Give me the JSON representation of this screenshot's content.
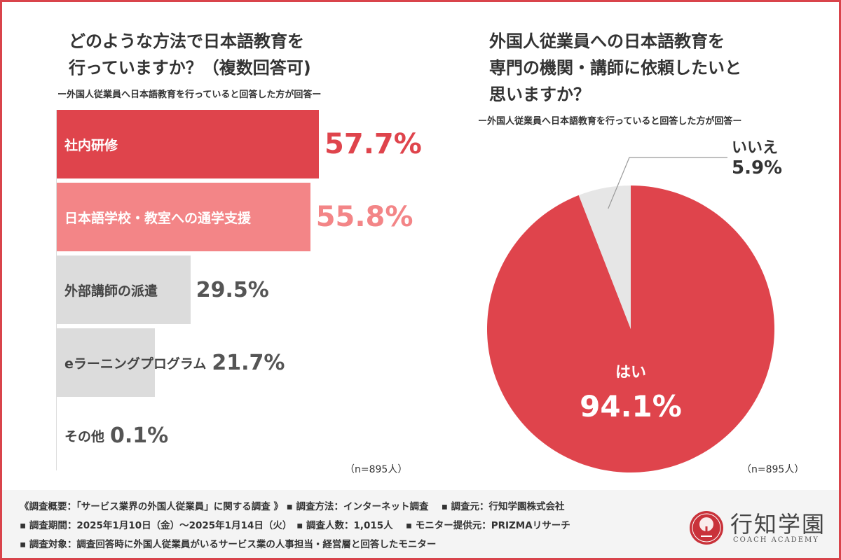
{
  "left": {
    "title_line1": "どのような方法で日本語教育を",
    "title_line2": "行っていますか？（複数回答可)",
    "subtitle": "ー外国人従業員へ日本語教育を行っていると回答した方が回答ー",
    "n_label": "（n=895人）"
  },
  "right": {
    "title_line1": "外国人従業員への日本語教育を",
    "title_line2": "専門の機関・講師に依頼したいと",
    "title_line3": "思いますか？",
    "subtitle": "ー外国人従業員へ日本語教育を行っていると回答した方が回答ー",
    "n_label": "（n=895人）"
  },
  "chart_data": [
    {
      "type": "bar",
      "orientation": "horizontal",
      "categories": [
        "社内研修",
        "日本語学校・教室への通学支援",
        "外部講師の派遣",
        "eラーニングプログラム",
        "その他"
      ],
      "values": [
        57.7,
        55.8,
        29.5,
        21.7,
        0.1
      ],
      "value_labels": [
        "57.7%",
        "55.8%",
        "29.5%",
        "21.7%",
        "0.1%"
      ],
      "colors": [
        "#df444c",
        "#f38587",
        "#dcdcdc",
        "#dcdcdc",
        "#dcdcdc"
      ],
      "label_colors": [
        "#ffffff",
        "#ffffff",
        "#444444",
        "#444444",
        "#444444"
      ],
      "value_colors": [
        "#df444c",
        "#f38587",
        "#555555",
        "#555555",
        "#555555"
      ]
    },
    {
      "type": "pie",
      "labels": [
        "はい",
        "いいえ"
      ],
      "values": [
        94.1,
        5.9
      ],
      "value_labels": [
        "94.1%",
        "5.9%"
      ],
      "colors": [
        "#df444c",
        "#e6e6e6"
      ]
    }
  ],
  "footer": {
    "line1": "《調査概要：「サービス業界の外国人従業員」に関する調査 》 ▪ 調査方法：インターネット調査　 ▪ 調査元：行知学園株式会社",
    "line2": "▪ 調査期間：2025年1月10日（金）～2025年1月14日（火）　▪ 調査人数：1,015人　 ▪ モニター提供元：PRIZMAリサーチ",
    "line3": "▪ 調査対象：調査回答時に外国人従業員がいるサービス業の人事担当・経営層と回答したモニター"
  },
  "logo": {
    "name": "行知学園",
    "sub": "COACH ACADEMY",
    "icon": "tree-emblem-icon",
    "color": "#c9323a"
  },
  "colors": {
    "frame": "#d9444b",
    "footer_bg": "#f4f4f4"
  }
}
